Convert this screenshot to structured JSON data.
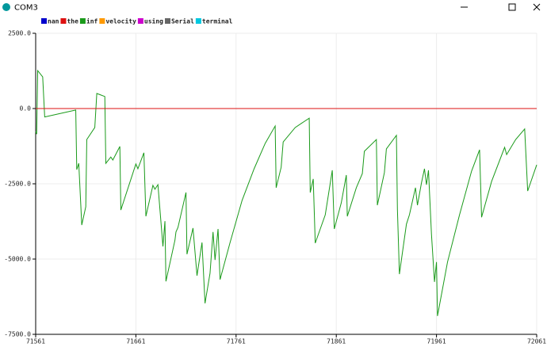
{
  "window": {
    "title": "COM3"
  },
  "chart_data": {
    "type": "line",
    "x": [
      71561,
      71562,
      71563,
      71568,
      71570,
      71601,
      71602,
      71604,
      71607,
      71611,
      71612,
      71620,
      71622,
      71630,
      71631,
      71636,
      71638,
      71645,
      71646,
      71661,
      71663,
      71669,
      71671,
      71678,
      71680,
      71683,
      71688,
      71690,
      71691,
      71700,
      71701,
      71703,
      71711,
      71712,
      71718,
      71722,
      71727,
      71730,
      71735,
      71738,
      71740,
      71743,
      71745,
      71755,
      71767,
      71779,
      71790,
      71800,
      71801,
      71806,
      71808,
      71820,
      71834,
      71835,
      71838,
      71840,
      71850,
      71857,
      71859,
      71866,
      71871,
      71872,
      71881,
      71887,
      71889,
      71901,
      71902,
      71909,
      71911,
      71921,
      71922,
      71924,
      71931,
      71934,
      71940,
      71942,
      71946,
      71949,
      71951,
      71953,
      71956,
      71959,
      71961,
      71962,
      71972,
      71984,
      71996,
      72004,
      72006,
      72016,
      72029,
      72031,
      72040,
      72049,
      72052,
      72061
    ],
    "series": [
      {
        "name": "nan",
        "color": "#0000cc",
        "values": [
          null,
          null,
          null,
          0,
          0,
          null,
          null,
          null,
          null,
          null,
          null,
          null,
          null,
          0,
          0,
          null,
          null,
          null,
          null,
          null,
          null,
          null,
          null,
          null,
          null,
          null,
          null,
          null,
          null,
          null,
          null,
          null,
          null,
          null,
          null,
          null,
          null,
          null,
          null,
          null,
          null,
          null,
          null,
          null,
          null,
          null,
          null,
          null,
          null,
          null,
          null,
          null,
          null,
          null,
          null,
          null,
          null,
          null,
          null,
          null,
          null,
          null,
          null,
          null,
          null,
          null,
          null,
          null,
          null,
          null,
          null,
          null,
          null,
          null,
          null,
          null,
          null,
          null,
          null,
          null,
          null,
          null,
          null,
          null,
          null,
          null,
          null,
          null,
          null,
          null,
          null,
          null,
          null,
          null,
          null,
          null
        ]
      },
      {
        "name": "the",
        "color": "#dd1111",
        "values": [
          0,
          0,
          0,
          0,
          0,
          0,
          0,
          0,
          0,
          0,
          0,
          0,
          0,
          0,
          0,
          0,
          0,
          0,
          0,
          0,
          0,
          0,
          0,
          0,
          0,
          0,
          0,
          0,
          0,
          0,
          0,
          0,
          0,
          0,
          0,
          0,
          0,
          0,
          0,
          0,
          0,
          0,
          0,
          0,
          0,
          0,
          0,
          0,
          0,
          0,
          0,
          0,
          0,
          0,
          0,
          0,
          0,
          0,
          0,
          0,
          0,
          0,
          0,
          0,
          0,
          0,
          0,
          0,
          0,
          0,
          0,
          0,
          0,
          0,
          0,
          0,
          0,
          0,
          0,
          0,
          0,
          0,
          0,
          0,
          0,
          0,
          0,
          0,
          0,
          0,
          0,
          0,
          0,
          0,
          0,
          0
        ]
      },
      {
        "name": "inf",
        "color": "#1a9a1a",
        "values": [
          -760,
          -850,
          1260,
          1050,
          -280,
          -50,
          -2030,
          -1820,
          -3870,
          -3260,
          -1030,
          -630,
          500,
          400,
          -1820,
          -1610,
          -1710,
          -1260,
          -3370,
          -1840,
          -2000,
          -1470,
          -3580,
          -2550,
          -2680,
          -2530,
          -4580,
          -3740,
          -5740,
          -4370,
          -4100,
          -3950,
          -2790,
          -4840,
          -3970,
          -5550,
          -4450,
          -6470,
          -5470,
          -4100,
          -5030,
          -4000,
          -5680,
          -4450,
          -3050,
          -2000,
          -1160,
          -580,
          -2630,
          -1950,
          -1110,
          -630,
          -320,
          -2790,
          -2340,
          -4470,
          -3530,
          -2050,
          -4000,
          -3130,
          -2210,
          -3580,
          -2630,
          -2160,
          -1420,
          -1030,
          -3210,
          -2130,
          -1340,
          -890,
          -3340,
          -5500,
          -3840,
          -3530,
          -2630,
          -3210,
          -2470,
          -2000,
          -2530,
          -2050,
          -4180,
          -5760,
          -5100,
          -6890,
          -5100,
          -3530,
          -2080,
          -1370,
          -3610,
          -2420,
          -1290,
          -1530,
          -1030,
          -680,
          -2740,
          -1870
        ]
      },
      {
        "name": "velocity",
        "color": "#ff9900",
        "values": [
          null,
          null,
          null,
          null,
          null,
          null,
          null,
          null,
          null,
          null,
          null,
          null,
          null,
          null,
          null,
          null,
          null,
          null,
          null,
          null,
          null,
          null,
          null,
          null,
          null,
          null,
          null,
          null,
          null,
          null,
          null,
          null,
          null,
          null,
          null,
          null,
          null,
          null,
          null,
          null,
          null,
          null,
          null,
          null,
          null,
          null,
          null,
          null,
          null,
          null,
          null,
          null,
          null,
          null,
          null,
          null,
          null,
          null,
          null,
          null,
          null,
          null,
          null,
          null,
          null,
          null,
          null,
          null,
          null,
          null,
          null,
          null,
          null,
          null,
          null,
          null,
          null,
          null,
          null,
          null,
          null,
          null,
          null,
          null,
          null,
          null,
          null,
          null,
          null,
          null,
          null,
          null,
          null,
          null,
          null,
          null
        ]
      },
      {
        "name": "using",
        "color": "#cc00cc",
        "values": [
          null,
          null,
          null,
          null,
          null,
          null,
          null,
          null,
          null,
          null,
          null,
          null,
          null,
          null,
          null,
          null,
          null,
          null,
          null,
          null,
          null,
          null,
          null,
          null,
          null,
          null,
          null,
          null,
          null,
          null,
          null,
          null,
          null,
          null,
          null,
          null,
          null,
          null,
          null,
          null,
          null,
          null,
          null,
          null,
          null,
          null,
          null,
          null,
          null,
          null,
          null,
          null,
          null,
          null,
          null,
          null,
          null,
          null,
          null,
          null,
          null,
          null,
          null,
          null,
          null,
          null,
          null,
          null,
          null,
          null,
          null,
          null,
          null,
          null,
          null,
          null,
          null,
          null,
          null,
          null,
          null,
          null,
          null,
          null,
          null,
          null,
          null,
          null,
          null,
          null,
          null,
          null,
          null,
          null,
          null,
          null
        ]
      },
      {
        "name": "Serial",
        "color": "#666666",
        "values": [
          null,
          null,
          null,
          null,
          null,
          null,
          null,
          null,
          null,
          null,
          null,
          null,
          null,
          null,
          null,
          null,
          null,
          null,
          null,
          null,
          null,
          null,
          null,
          null,
          null,
          null,
          null,
          null,
          null,
          null,
          null,
          null,
          null,
          null,
          null,
          null,
          null,
          null,
          null,
          null,
          null,
          null,
          null,
          null,
          null,
          null,
          null,
          null,
          null,
          null,
          null,
          null,
          null,
          null,
          null,
          null,
          null,
          null,
          null,
          null,
          null,
          null,
          null,
          null,
          null,
          null,
          null,
          null,
          null,
          null,
          null,
          null,
          null,
          null,
          null,
          null,
          null,
          null,
          null,
          null,
          null,
          null,
          null,
          null,
          null,
          null,
          null,
          null,
          null,
          null,
          null,
          null,
          null,
          null,
          null,
          null
        ]
      },
      {
        "name": "terminal",
        "color": "#00c8e0",
        "values": [
          null,
          null,
          null,
          null,
          null,
          null,
          null,
          null,
          null,
          null,
          null,
          null,
          null,
          null,
          null,
          null,
          null,
          null,
          null,
          null,
          null,
          null,
          null,
          null,
          null,
          null,
          null,
          null,
          null,
          null,
          null,
          null,
          null,
          null,
          null,
          null,
          null,
          null,
          null,
          null,
          null,
          null,
          null,
          null,
          null,
          null,
          null,
          null,
          null,
          null,
          null,
          null,
          null,
          null,
          null,
          null,
          null,
          null,
          null,
          null,
          null,
          null,
          null,
          null,
          null,
          null,
          null,
          null,
          null,
          null,
          null,
          null,
          null,
          null,
          null,
          null,
          null,
          null,
          null,
          null,
          null,
          null,
          null,
          null,
          null,
          null,
          null,
          null,
          null,
          null,
          null,
          null,
          null,
          null,
          null,
          null
        ]
      }
    ],
    "xlim": [
      71561,
      72061
    ],
    "xticks": [
      71561,
      71661,
      71761,
      71861,
      71961,
      72061
    ],
    "ylim": [
      -7500,
      2500
    ],
    "yticks": [
      {
        "value": 2500,
        "label": "2500.0"
      },
      {
        "value": 0,
        "label": "0.0"
      },
      {
        "value": -2500,
        "label": "-2500.0"
      },
      {
        "value": -5000,
        "label": "-5000.0"
      },
      {
        "value": -7500,
        "label": "-7500.0"
      }
    ],
    "grid": true
  }
}
